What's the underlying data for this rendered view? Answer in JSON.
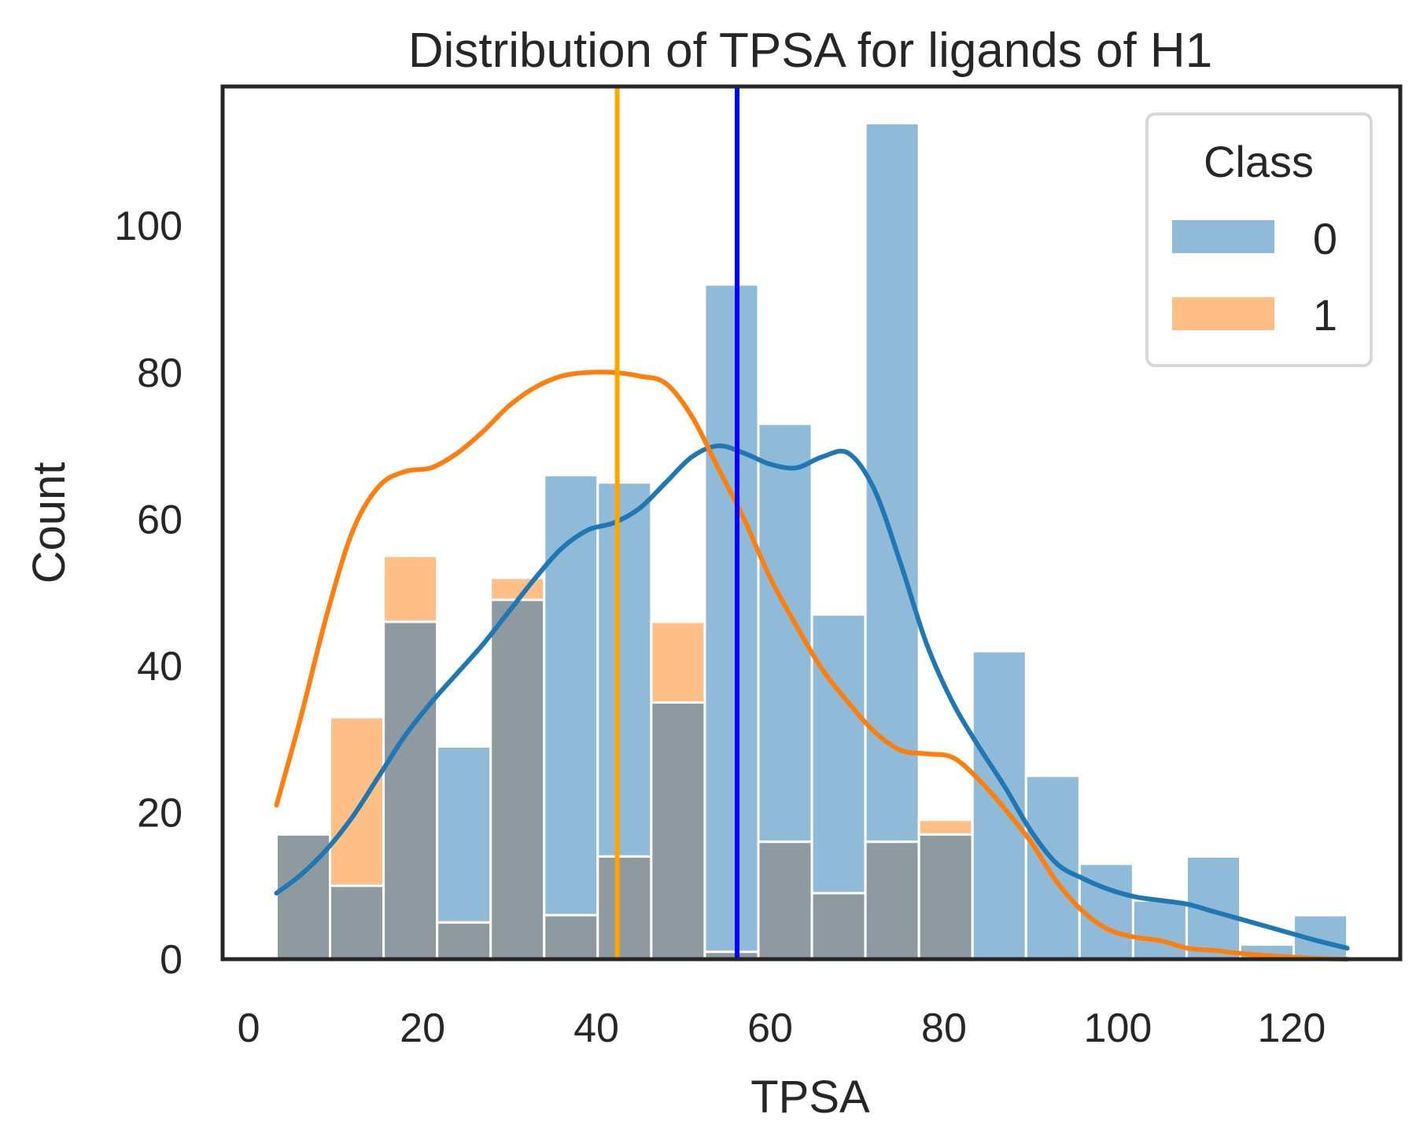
{
  "chart_data": {
    "type": "histogram",
    "title": "Distribution of TPSA for ligands of H1",
    "xlabel": "TPSA",
    "ylabel": "Count",
    "xlim": [
      -3,
      132.5
    ],
    "ylim": [
      0,
      119
    ],
    "x_ticks": [
      0,
      20,
      40,
      60,
      80,
      100,
      120
    ],
    "y_ticks": [
      0,
      20,
      40,
      60,
      80,
      100
    ],
    "bin_edges": [
      3.2,
      9.36,
      15.52,
      21.68,
      27.84,
      34.0,
      40.16,
      46.32,
      52.48,
      58.64,
      64.8,
      70.96,
      77.12,
      83.28,
      89.44,
      95.6,
      101.76,
      107.92,
      114.08,
      120.24,
      126.4
    ],
    "series": [
      {
        "name": "0",
        "color": "#1f77b4",
        "counts": [
          17,
          10,
          46,
          29,
          49,
          66,
          65,
          35,
          92,
          73,
          47,
          114,
          17,
          42,
          25,
          13,
          8,
          14,
          2,
          6
        ],
        "kde_x": [
          3.2,
          6,
          9,
          12,
          15,
          18,
          21,
          24,
          27,
          30,
          33,
          36,
          39,
          42,
          45,
          48,
          51,
          54,
          57,
          60,
          63,
          66,
          69,
          72,
          75,
          78,
          81,
          84,
          87,
          90,
          93,
          96,
          99,
          102,
          105,
          108,
          111,
          114,
          117,
          120,
          123,
          126.4
        ],
        "kde_y": [
          9,
          11.5,
          15,
          19.5,
          25,
          30.5,
          35,
          39,
          43,
          47.5,
          52,
          56,
          58.5,
          59.5,
          61.5,
          65,
          68.5,
          70,
          69,
          67.5,
          67,
          68.5,
          69,
          64,
          54,
          43,
          35,
          29,
          23.5,
          17.5,
          13,
          11,
          9.5,
          8.5,
          8,
          7.5,
          6.5,
          5.5,
          4.5,
          3.5,
          2.5,
          1.5
        ]
      },
      {
        "name": "1",
        "color": "#ff7f0e",
        "counts": [
          17,
          33,
          55,
          5,
          52,
          6,
          14,
          46,
          1,
          16,
          9,
          16,
          19,
          0,
          0,
          0,
          0,
          0,
          0,
          0
        ],
        "kde_x": [
          3.2,
          6,
          9,
          12,
          15,
          18,
          21,
          24,
          27,
          30,
          33,
          36,
          39,
          42,
          45,
          48,
          51,
          54,
          57,
          60,
          63,
          66,
          69,
          72,
          75,
          78,
          81,
          84,
          87,
          90,
          93,
          96,
          99,
          102,
          105,
          108,
          111,
          114,
          117,
          120,
          123,
          126.4
        ],
        "kde_y": [
          21,
          33,
          47,
          58.5,
          64.5,
          66.5,
          67,
          69,
          72,
          75.5,
          78,
          79.5,
          80,
          80,
          79.5,
          78.5,
          74,
          67,
          60,
          52,
          45.5,
          39.5,
          35,
          31,
          28.5,
          28,
          27.5,
          24.5,
          20.5,
          16,
          10.5,
          6.5,
          4,
          3,
          2.5,
          1.5,
          1.2,
          0.8,
          0.5,
          0.3,
          0.1,
          0
        ]
      }
    ],
    "overlap_color": "#8e9a9f",
    "vlines": [
      {
        "x": 42.4,
        "color": "#ffa500"
      },
      {
        "x": 56.2,
        "color": "#0000ff"
      }
    ],
    "legend": {
      "title": "Class",
      "placement": "top-right",
      "entries": [
        "0",
        "1"
      ]
    }
  }
}
